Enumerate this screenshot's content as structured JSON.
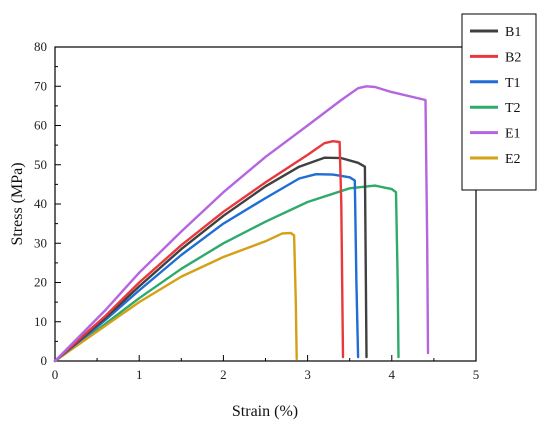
{
  "chart_data": {
    "type": "line",
    "title": "",
    "xlabel": "Strain (%)",
    "ylabel": "Stress (MPa)",
    "xlim": [
      0,
      5
    ],
    "ylim": [
      0,
      80
    ],
    "x_ticks": [
      "0",
      "1",
      "2",
      "3",
      "4",
      "5"
    ],
    "y_ticks": [
      "0",
      "10",
      "20",
      "30",
      "40",
      "50",
      "60",
      "70",
      "80"
    ],
    "grid": false,
    "legend_position": "top-right, outside plot",
    "series": [
      {
        "name": "B1",
        "color": "#404040",
        "points": [
          [
            0,
            0
          ],
          [
            0.3,
            5.5
          ],
          [
            0.6,
            11
          ],
          [
            1.0,
            19
          ],
          [
            1.5,
            28.5
          ],
          [
            2.0,
            37
          ],
          [
            2.5,
            44.5
          ],
          [
            2.9,
            49.5
          ],
          [
            3.2,
            51.8
          ],
          [
            3.4,
            51.7
          ],
          [
            3.6,
            50.5
          ],
          [
            3.68,
            49.5
          ],
          [
            3.7,
            1
          ]
        ]
      },
      {
        "name": "B2",
        "color": "#e8383d",
        "points": [
          [
            0,
            0
          ],
          [
            0.3,
            5.8
          ],
          [
            0.6,
            11.5
          ],
          [
            1.0,
            20
          ],
          [
            1.5,
            29.5
          ],
          [
            2.0,
            38
          ],
          [
            2.5,
            45.5
          ],
          [
            3.0,
            52.5
          ],
          [
            3.2,
            55.5
          ],
          [
            3.3,
            56
          ],
          [
            3.38,
            55.8
          ],
          [
            3.4,
            40
          ],
          [
            3.42,
            1
          ]
        ]
      },
      {
        "name": "T1",
        "color": "#1f6ed6",
        "points": [
          [
            0,
            0
          ],
          [
            0.3,
            5.2
          ],
          [
            0.6,
            10.5
          ],
          [
            1.0,
            18
          ],
          [
            1.5,
            27
          ],
          [
            2.0,
            35
          ],
          [
            2.5,
            41.5
          ],
          [
            2.9,
            46.5
          ],
          [
            3.1,
            47.6
          ],
          [
            3.3,
            47.5
          ],
          [
            3.5,
            46.8
          ],
          [
            3.56,
            46
          ],
          [
            3.58,
            20
          ],
          [
            3.6,
            1
          ]
        ]
      },
      {
        "name": "T2",
        "color": "#2eaa6a",
        "points": [
          [
            0,
            0
          ],
          [
            0.3,
            4.8
          ],
          [
            0.6,
            9.5
          ],
          [
            1.0,
            16
          ],
          [
            1.5,
            23.5
          ],
          [
            2.0,
            30
          ],
          [
            2.5,
            35.5
          ],
          [
            3.0,
            40.5
          ],
          [
            3.5,
            44
          ],
          [
            3.8,
            44.7
          ],
          [
            4.0,
            43.8
          ],
          [
            4.05,
            43
          ],
          [
            4.07,
            20
          ],
          [
            4.08,
            1
          ]
        ]
      },
      {
        "name": "E1",
        "color": "#b565e0",
        "points": [
          [
            0,
            0
          ],
          [
            0.3,
            6.5
          ],
          [
            0.6,
            13
          ],
          [
            1.0,
            22.5
          ],
          [
            1.5,
            33
          ],
          [
            2.0,
            43
          ],
          [
            2.5,
            52
          ],
          [
            3.0,
            60
          ],
          [
            3.4,
            66.5
          ],
          [
            3.6,
            69.5
          ],
          [
            3.7,
            70
          ],
          [
            3.8,
            69.8
          ],
          [
            4.0,
            68.5
          ],
          [
            4.4,
            66.5
          ],
          [
            4.42,
            30
          ],
          [
            4.43,
            2
          ]
        ]
      },
      {
        "name": "E2",
        "color": "#d4a017",
        "points": [
          [
            0,
            0
          ],
          [
            0.3,
            4.5
          ],
          [
            0.6,
            9
          ],
          [
            1.0,
            15
          ],
          [
            1.5,
            21.5
          ],
          [
            2.0,
            26.5
          ],
          [
            2.5,
            30.5
          ],
          [
            2.7,
            32.5
          ],
          [
            2.8,
            32.6
          ],
          [
            2.84,
            32
          ],
          [
            2.86,
            15
          ],
          [
            2.87,
            0.5
          ]
        ]
      }
    ]
  }
}
